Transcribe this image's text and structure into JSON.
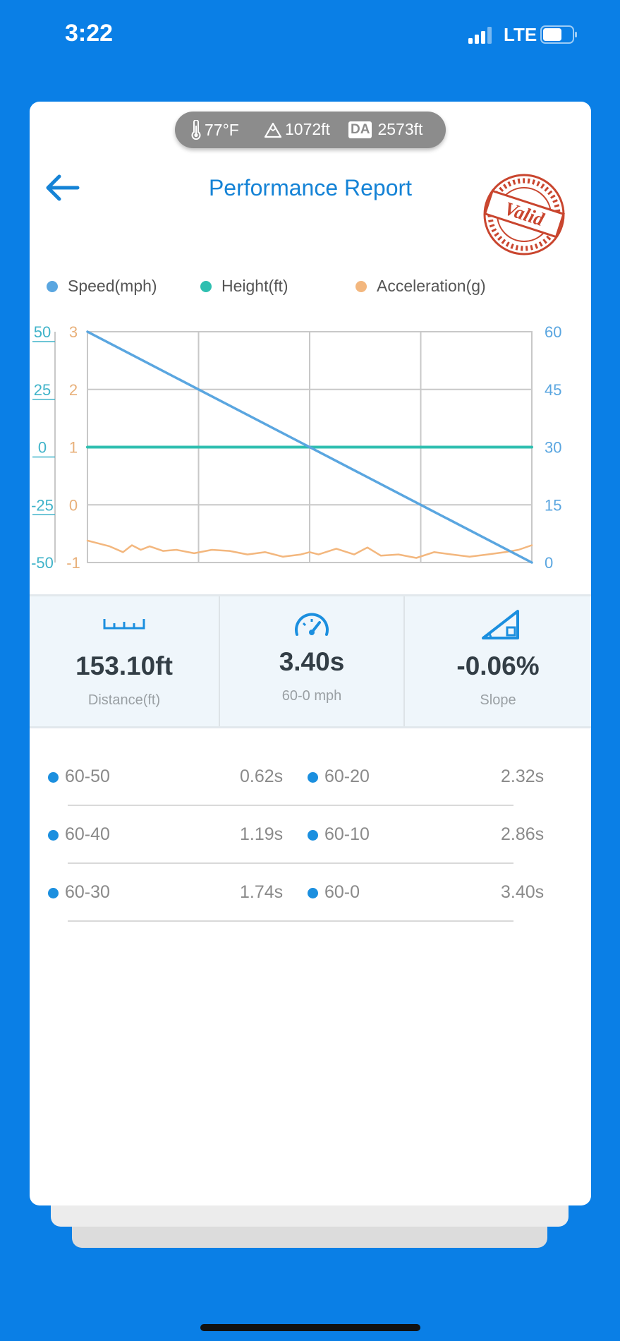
{
  "status_bar": {
    "time": "3:22",
    "network": "LTE"
  },
  "conditions": {
    "temperature": "77°F",
    "altitude": "1072ft",
    "da_label": "DA",
    "density_altitude": "2573ft"
  },
  "header": {
    "title": "Performance Report",
    "stamp_text": "Valid"
  },
  "legend": [
    {
      "label": "Speed(mph)",
      "color": "#5aa6e0"
    },
    {
      "label": "Height(ft)",
      "color": "#2fbfb0"
    },
    {
      "label": "Acceleration(g)",
      "color": "#f3b77e"
    }
  ],
  "chart_data": {
    "type": "line",
    "x_gridlines": 4,
    "axes": {
      "height_left": {
        "ticks": [
          "50",
          "25",
          "0",
          "-25",
          "-50"
        ],
        "range": [
          -50,
          50
        ],
        "color": "#3fb3c9"
      },
      "accel_left": {
        "ticks": [
          "3",
          "2",
          "1",
          "0",
          "-1"
        ],
        "range": [
          -1,
          3
        ],
        "color": "#e8b07a"
      },
      "speed_right": {
        "ticks": [
          "60",
          "45",
          "30",
          "15",
          "0"
        ],
        "range": [
          0,
          60
        ],
        "color": "#5aa6e0"
      }
    },
    "series": [
      {
        "name": "Speed(mph)",
        "axis": "speed_right",
        "x": [
          0,
          0.25,
          0.5,
          0.75,
          1
        ],
        "values": [
          60,
          45,
          30,
          15,
          0
        ]
      },
      {
        "name": "Height(ft)",
        "axis": "height_left",
        "x": [
          0,
          1
        ],
        "values": [
          0,
          0
        ]
      },
      {
        "name": "Acceleration(g)",
        "axis": "accel_left",
        "x": [
          0,
          0.02,
          0.05,
          0.08,
          0.1,
          0.12,
          0.14,
          0.17,
          0.2,
          0.24,
          0.28,
          0.32,
          0.36,
          0.4,
          0.44,
          0.48,
          0.5,
          0.52,
          0.56,
          0.6,
          0.63,
          0.66,
          0.7,
          0.74,
          0.78,
          0.82,
          0.86,
          0.9,
          0.94,
          0.97,
          1
        ],
        "values": [
          -0.62,
          -0.66,
          -0.72,
          -0.82,
          -0.7,
          -0.78,
          -0.72,
          -0.8,
          -0.78,
          -0.84,
          -0.78,
          -0.8,
          -0.86,
          -0.82,
          -0.9,
          -0.86,
          -0.82,
          -0.86,
          -0.76,
          -0.86,
          -0.74,
          -0.88,
          -0.86,
          -0.92,
          -0.82,
          -0.86,
          -0.9,
          -0.86,
          -0.82,
          -0.78,
          -0.7
        ]
      }
    ]
  },
  "stats": [
    {
      "value": "153.10ft",
      "label": "Distance(ft)",
      "icon": "ruler-icon"
    },
    {
      "value": "3.40s",
      "label": "60-0 mph",
      "icon": "speedometer-icon"
    },
    {
      "value": "-0.06%",
      "label": "Slope",
      "icon": "slope-icon"
    }
  ],
  "splits": [
    {
      "left_label": "60-50",
      "left_time": "0.62s",
      "right_label": "60-20",
      "right_time": "2.32s"
    },
    {
      "left_label": "60-40",
      "left_time": "1.19s",
      "right_label": "60-10",
      "right_time": "2.86s"
    },
    {
      "left_label": "60-30",
      "left_time": "1.74s",
      "right_label": "60-0",
      "right_time": "3.40s"
    }
  ]
}
